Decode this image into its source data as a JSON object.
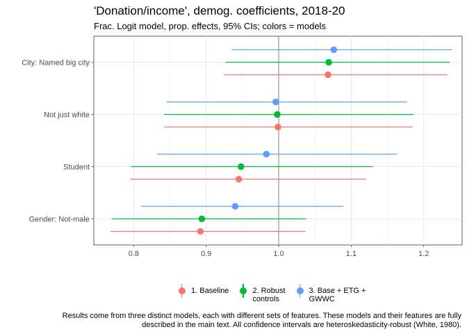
{
  "title": "'Donation/income', demog. coefficients, 2018-20",
  "subtitle": "Frac. Logit model, prop. effects, 95% CIs; colors = models",
  "caption_line1": "Results come from three distinct models, each with different sets of features. These models and their features are fully",
  "caption_line2": "described in the main text. All confidence intervals are heteroskedasticity-robust (White, 1980).",
  "legend": [
    {
      "label": "1. Baseline",
      "color": "#F8766D"
    },
    {
      "label": "2. Robust\ncontrols",
      "color": "#00BA38"
    },
    {
      "label": "3. Base + ETG +\nGWWC",
      "color": "#619CFF"
    }
  ],
  "chart_data": {
    "type": "scatter",
    "orientation": "horizontal-coefficient",
    "xlim": [
      0.745,
      1.253
    ],
    "xticks": [
      0.8,
      0.9,
      1.0,
      1.1,
      1.2
    ],
    "xtick_labels": [
      "0.8",
      "0.9",
      "1.0",
      "1.1",
      "1.2"
    ],
    "reference_line": 1.0,
    "categories": [
      "City: Named big city",
      "Not just white",
      "Student",
      "Gender: Not-male"
    ],
    "series": [
      {
        "name": "1. Baseline",
        "color": "#F8766D",
        "estimate": [
          1.068,
          0.999,
          0.945,
          0.892
        ],
        "lower": [
          0.925,
          0.842,
          0.795,
          0.768
        ],
        "upper": [
          1.233,
          1.185,
          1.121,
          1.037
        ]
      },
      {
        "name": "2. Robust controls",
        "color": "#00BA38",
        "estimate": [
          1.069,
          0.998,
          0.948,
          0.894
        ],
        "lower": [
          0.927,
          0.842,
          0.796,
          0.77
        ],
        "upper": [
          1.236,
          1.186,
          1.13,
          1.038
        ]
      },
      {
        "name": "3. Base + ETG + GWWC",
        "color": "#619CFF",
        "estimate": [
          1.076,
          0.996,
          0.983,
          0.94
        ],
        "lower": [
          0.935,
          0.845,
          0.832,
          0.81
        ],
        "upper": [
          1.239,
          1.177,
          1.163,
          1.089
        ]
      }
    ],
    "grid": true
  }
}
